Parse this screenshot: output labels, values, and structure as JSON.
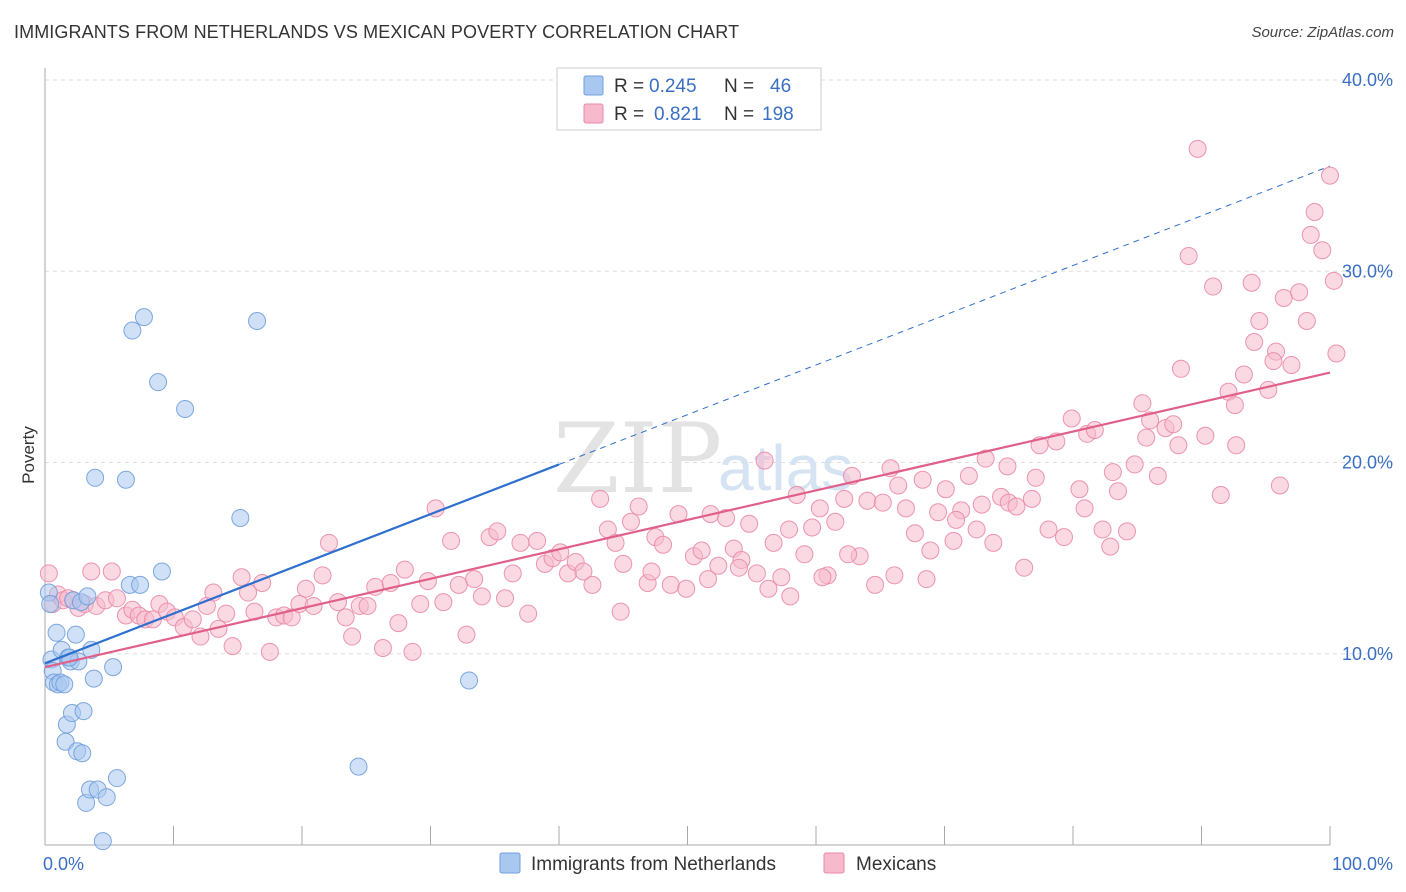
{
  "title": "IMMIGRANTS FROM NETHERLANDS VS MEXICAN POVERTY CORRELATION CHART",
  "source": "Source: ZipAtlas.com",
  "watermark": {
    "zip": "ZIP",
    "atlas": "atlas"
  },
  "colors": {
    "blue_fill": "#a9c8f0",
    "blue_stroke": "#6f9fdc",
    "blue_line": "#2f6fce",
    "pink_fill": "#f7b9cc",
    "pink_stroke": "#e98aa8",
    "pink_line": "#e0608a",
    "tick_text": "#3a6fc4",
    "grid": "#dddddd"
  },
  "legend": {
    "r_label": "R =",
    "n_label": "N =",
    "items": [
      {
        "r": "0.245",
        "n": "46"
      },
      {
        "r": "0.821",
        "n": "198"
      }
    ]
  },
  "bottom_legend": [
    "Immigrants from Netherlands",
    "Mexicans"
  ],
  "chart_data": {
    "type": "scatter",
    "title": "IMMIGRANTS FROM NETHERLANDS VS MEXICAN POVERTY CORRELATION CHART",
    "xlabel": "",
    "ylabel": "Poverty",
    "xlim": [
      0,
      100
    ],
    "ylim": [
      0,
      40
    ],
    "x_tick_labels": [
      "0.0%",
      "100.0%"
    ],
    "y_ticks": [
      10,
      20,
      30,
      40
    ],
    "y_tick_labels": [
      "10.0%",
      "20.0%",
      "30.0%",
      "40.0%"
    ],
    "grid": true,
    "series": [
      {
        "name": "Immigrants from Netherlands",
        "r": 0.245,
        "n": 46,
        "trend": {
          "x0": 0,
          "y0": 9.5,
          "x1": 40,
          "y1": 19.9,
          "dashed_to_x": 100,
          "dashed_to_y": 35.5
        },
        "points": [
          [
            0.3,
            13.2
          ],
          [
            0.4,
            12.6
          ],
          [
            0.5,
            9.7
          ],
          [
            0.6,
            9.1
          ],
          [
            0.7,
            8.5
          ],
          [
            0.9,
            11.1
          ],
          [
            1.0,
            8.4
          ],
          [
            1.2,
            8.5
          ],
          [
            1.3,
            10.2
          ],
          [
            1.5,
            8.4
          ],
          [
            1.6,
            5.4
          ],
          [
            1.7,
            6.3
          ],
          [
            1.8,
            9.8
          ],
          [
            2.0,
            9.6
          ],
          [
            2.1,
            6.9
          ],
          [
            2.2,
            12.8
          ],
          [
            2.4,
            11.0
          ],
          [
            2.5,
            4.9
          ],
          [
            2.6,
            9.6
          ],
          [
            2.8,
            12.7
          ],
          [
            2.9,
            4.8
          ],
          [
            3.0,
            7.0
          ],
          [
            3.2,
            2.2
          ],
          [
            3.3,
            13.0
          ],
          [
            3.5,
            2.9
          ],
          [
            3.6,
            10.2
          ],
          [
            3.8,
            8.7
          ],
          [
            3.9,
            19.2
          ],
          [
            4.1,
            2.9
          ],
          [
            4.5,
            0.2
          ],
          [
            4.8,
            2.5
          ],
          [
            5.3,
            9.3
          ],
          [
            5.6,
            3.5
          ],
          [
            6.3,
            19.1
          ],
          [
            6.6,
            13.6
          ],
          [
            6.8,
            26.9
          ],
          [
            7.4,
            13.6
          ],
          [
            7.7,
            27.6
          ],
          [
            8.8,
            24.2
          ],
          [
            9.1,
            14.3
          ],
          [
            10.9,
            22.8
          ],
          [
            15.2,
            17.1
          ],
          [
            16.5,
            27.4
          ],
          [
            24.4,
            4.1
          ],
          [
            33.0,
            8.6
          ],
          [
            1.9,
            9.8
          ]
        ]
      },
      {
        "name": "Mexicans",
        "r": 0.821,
        "n": 198,
        "trend": {
          "x0": 0,
          "y0": 9.3,
          "x1": 100,
          "y1": 24.7
        },
        "points": [
          [
            0.3,
            14.2
          ],
          [
            0.6,
            12.6
          ],
          [
            1.0,
            13.1
          ],
          [
            1.4,
            12.8
          ],
          [
            1.8,
            12.9
          ],
          [
            2.2,
            12.8
          ],
          [
            2.6,
            12.4
          ],
          [
            3.1,
            12.6
          ],
          [
            3.6,
            14.3
          ],
          [
            4.0,
            12.5
          ],
          [
            4.7,
            12.8
          ],
          [
            5.2,
            14.3
          ],
          [
            5.6,
            12.9
          ],
          [
            6.3,
            12.0
          ],
          [
            6.8,
            12.3
          ],
          [
            7.3,
            12.0
          ],
          [
            7.8,
            11.8
          ],
          [
            8.4,
            11.8
          ],
          [
            8.9,
            12.6
          ],
          [
            9.5,
            12.2
          ],
          [
            10.1,
            11.9
          ],
          [
            10.8,
            11.4
          ],
          [
            11.5,
            11.8
          ],
          [
            12.1,
            10.9
          ],
          [
            12.6,
            12.5
          ],
          [
            13.1,
            13.2
          ],
          [
            13.5,
            11.3
          ],
          [
            14.1,
            12.1
          ],
          [
            14.6,
            10.4
          ],
          [
            15.3,
            14.0
          ],
          [
            15.8,
            13.2
          ],
          [
            16.3,
            12.2
          ],
          [
            16.9,
            13.7
          ],
          [
            17.5,
            10.1
          ],
          [
            18.0,
            11.9
          ],
          [
            18.6,
            12.0
          ],
          [
            19.2,
            11.9
          ],
          [
            19.8,
            12.6
          ],
          [
            20.3,
            13.4
          ],
          [
            20.9,
            12.5
          ],
          [
            21.6,
            14.1
          ],
          [
            22.1,
            15.8
          ],
          [
            22.8,
            12.7
          ],
          [
            23.4,
            11.9
          ],
          [
            23.9,
            10.9
          ],
          [
            24.5,
            12.5
          ],
          [
            25.1,
            12.5
          ],
          [
            25.7,
            13.5
          ],
          [
            26.3,
            10.3
          ],
          [
            26.9,
            13.7
          ],
          [
            27.5,
            11.6
          ],
          [
            28.0,
            14.4
          ],
          [
            28.6,
            10.1
          ],
          [
            29.2,
            12.6
          ],
          [
            29.8,
            13.8
          ],
          [
            30.4,
            17.6
          ],
          [
            31.0,
            12.7
          ],
          [
            31.6,
            15.9
          ],
          [
            32.2,
            13.6
          ],
          [
            32.8,
            11.0
          ],
          [
            33.4,
            13.9
          ],
          [
            34.0,
            13.0
          ],
          [
            34.6,
            16.1
          ],
          [
            35.2,
            16.4
          ],
          [
            35.8,
            12.9
          ],
          [
            36.4,
            14.2
          ],
          [
            37.0,
            15.8
          ],
          [
            37.6,
            12.1
          ],
          [
            38.3,
            15.9
          ],
          [
            38.9,
            14.7
          ],
          [
            39.5,
            15.0
          ],
          [
            40.1,
            15.3
          ],
          [
            40.7,
            14.2
          ],
          [
            41.3,
            14.8
          ],
          [
            41.9,
            14.3
          ],
          [
            42.6,
            13.6
          ],
          [
            43.2,
            18.1
          ],
          [
            43.8,
            16.5
          ],
          [
            44.4,
            15.8
          ],
          [
            45.0,
            14.7
          ],
          [
            45.6,
            16.9
          ],
          [
            46.2,
            17.7
          ],
          [
            46.9,
            13.7
          ],
          [
            47.5,
            16.1
          ],
          [
            48.1,
            15.7
          ],
          [
            48.7,
            13.6
          ],
          [
            49.3,
            17.3
          ],
          [
            49.9,
            13.4
          ],
          [
            50.5,
            15.1
          ],
          [
            51.1,
            15.4
          ],
          [
            51.8,
            17.3
          ],
          [
            52.4,
            14.6
          ],
          [
            53.0,
            17.1
          ],
          [
            53.6,
            15.5
          ],
          [
            54.2,
            14.9
          ],
          [
            54.8,
            16.8
          ],
          [
            55.4,
            14.2
          ],
          [
            56.0,
            20.1
          ],
          [
            56.7,
            15.8
          ],
          [
            57.3,
            14.0
          ],
          [
            57.9,
            16.5
          ],
          [
            58.5,
            18.3
          ],
          [
            59.1,
            15.2
          ],
          [
            59.7,
            16.6
          ],
          [
            60.3,
            17.6
          ],
          [
            60.9,
            14.1
          ],
          [
            61.5,
            16.9
          ],
          [
            62.2,
            18.1
          ],
          [
            62.8,
            19.3
          ],
          [
            63.4,
            15.1
          ],
          [
            64.0,
            18.0
          ],
          [
            64.6,
            13.6
          ],
          [
            65.2,
            17.9
          ],
          [
            65.8,
            19.7
          ],
          [
            66.4,
            18.8
          ],
          [
            67.0,
            17.6
          ],
          [
            67.7,
            16.3
          ],
          [
            68.3,
            19.1
          ],
          [
            68.9,
            15.4
          ],
          [
            69.5,
            17.4
          ],
          [
            70.1,
            18.6
          ],
          [
            70.7,
            15.9
          ],
          [
            71.3,
            17.5
          ],
          [
            71.9,
            19.3
          ],
          [
            72.5,
            16.5
          ],
          [
            73.2,
            20.2
          ],
          [
            73.8,
            15.8
          ],
          [
            74.4,
            18.2
          ],
          [
            75.0,
            17.9
          ],
          [
            75.6,
            17.7
          ],
          [
            76.2,
            14.5
          ],
          [
            76.8,
            18.1
          ],
          [
            77.4,
            20.9
          ],
          [
            78.1,
            16.5
          ],
          [
            78.7,
            21.1
          ],
          [
            79.3,
            16.1
          ],
          [
            79.9,
            22.3
          ],
          [
            80.5,
            18.6
          ],
          [
            81.1,
            21.5
          ],
          [
            81.7,
            21.7
          ],
          [
            82.3,
            16.5
          ],
          [
            82.9,
            15.6
          ],
          [
            83.5,
            18.5
          ],
          [
            84.2,
            16.4
          ],
          [
            84.8,
            19.9
          ],
          [
            85.4,
            23.1
          ],
          [
            86.0,
            22.2
          ],
          [
            86.6,
            19.3
          ],
          [
            87.2,
            21.8
          ],
          [
            87.8,
            22.0
          ],
          [
            88.4,
            24.9
          ],
          [
            89.0,
            30.8
          ],
          [
            89.7,
            36.4
          ],
          [
            90.3,
            21.4
          ],
          [
            90.9,
            29.2
          ],
          [
            91.5,
            18.3
          ],
          [
            92.1,
            23.7
          ],
          [
            92.7,
            20.9
          ],
          [
            93.3,
            24.6
          ],
          [
            93.9,
            29.4
          ],
          [
            94.5,
            27.4
          ],
          [
            95.2,
            23.8
          ],
          [
            95.8,
            25.8
          ],
          [
            96.4,
            28.6
          ],
          [
            97.0,
            25.1
          ],
          [
            97.6,
            28.9
          ],
          [
            98.2,
            27.4
          ],
          [
            98.8,
            33.1
          ],
          [
            99.4,
            31.1
          ],
          [
            100.0,
            35.0
          ],
          [
            60.5,
            14.0
          ],
          [
            44.8,
            12.2
          ],
          [
            47.2,
            14.3
          ],
          [
            51.6,
            13.9
          ],
          [
            54.0,
            14.5
          ],
          [
            56.3,
            13.4
          ],
          [
            58.0,
            13.0
          ],
          [
            62.5,
            15.2
          ],
          [
            66.1,
            14.1
          ],
          [
            68.6,
            13.9
          ],
          [
            70.9,
            17.0
          ],
          [
            72.9,
            17.8
          ],
          [
            74.9,
            19.8
          ],
          [
            77.1,
            19.2
          ],
          [
            80.9,
            17.6
          ],
          [
            83.1,
            19.5
          ],
          [
            85.7,
            21.3
          ],
          [
            88.2,
            20.9
          ],
          [
            92.6,
            23.0
          ],
          [
            96.1,
            18.8
          ],
          [
            100.3,
            29.5
          ],
          [
            100.5,
            25.7
          ],
          [
            98.5,
            31.9
          ],
          [
            95.6,
            25.3
          ],
          [
            94.1,
            26.3
          ]
        ]
      }
    ]
  }
}
